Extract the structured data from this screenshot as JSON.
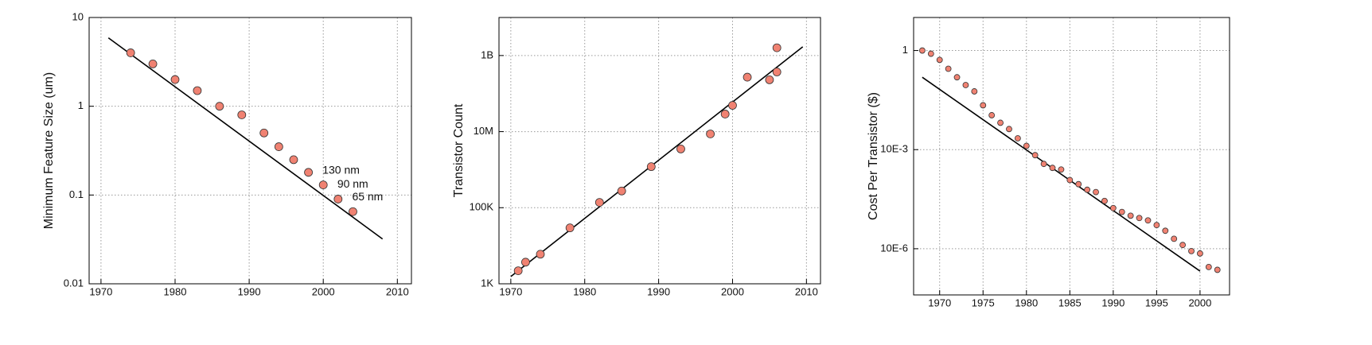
{
  "chart_data": [
    {
      "type": "scatter",
      "y_label": "Minimum Feature Size (um)",
      "yscale": "log",
      "grid": true,
      "color": "#f08272",
      "x": [
        1974,
        1977,
        1980,
        1983,
        1986,
        1989,
        1992,
        1994,
        1996,
        1998,
        2000,
        2002,
        2004
      ],
      "values": [
        4,
        3,
        2,
        1.5,
        1,
        0.8,
        0.5,
        0.35,
        0.25,
        0.18,
        0.13,
        0.09,
        0.065
      ],
      "fit": {
        "x": [
          1971,
          2008
        ],
        "values": [
          5.9,
          0.032
        ]
      },
      "annotations": [
        {
          "text": "130 nm",
          "x": 2000,
          "y": 0.13
        },
        {
          "text": "90 nm",
          "x": 2002,
          "y": 0.09
        },
        {
          "text": "65 nm",
          "x": 2004,
          "y": 0.065
        }
      ],
      "xlim": [
        1968.4,
        2011.9
      ],
      "xticks": [
        1970,
        1980,
        1990,
        2000,
        2010
      ],
      "ylim": [
        0.01,
        10
      ],
      "yticks": [
        0.01,
        0.1,
        1,
        10
      ]
    },
    {
      "type": "scatter",
      "y_label": "Transistor Count",
      "yscale": "log",
      "grid": true,
      "color": "#f08272",
      "x": [
        1971,
        1972,
        1974,
        1978,
        1982,
        1985,
        1989,
        1993,
        1997,
        1999,
        2000,
        2002,
        2005,
        2006,
        2006
      ],
      "values": [
        2200,
        3700,
        6000,
        29500,
        138000,
        275000,
        1200000,
        3500000,
        8700000,
        29000000,
        49000000,
        270000000,
        230000000,
        1600000000,
        370000000
      ],
      "fit": {
        "x": [
          1970,
          2009.5
        ],
        "values": [
          1550,
          1700000000
        ]
      },
      "xlim": [
        1968.4,
        2011.9
      ],
      "xticks": [
        1970,
        1980,
        1990,
        2000,
        2010
      ],
      "ylim": [
        1000,
        10000000000
      ],
      "yticks": [
        {
          "value": 1000,
          "label": "1K"
        },
        {
          "value": 100000,
          "label": "100K"
        },
        {
          "value": 10000000,
          "label": "10M"
        },
        {
          "value": 1000000000,
          "label": "1B"
        }
      ]
    },
    {
      "type": "scatter",
      "y_label": "Cost Per Transistor ($)",
      "yscale": "log",
      "grid": true,
      "color": "#f08272",
      "x": [
        1968,
        1969,
        1970,
        1971,
        1972,
        1973,
        1974,
        1975,
        1976,
        1977,
        1978,
        1979,
        1980,
        1981,
        1982,
        1983,
        1984,
        1985,
        1986,
        1987,
        1988,
        1989,
        1990,
        1991,
        1992,
        1993,
        1994,
        1995,
        1996,
        1997,
        1998,
        1999,
        2000,
        2001,
        2002
      ],
      "values": [
        1,
        0.8,
        0.52,
        0.28,
        0.155,
        0.09,
        0.058,
        0.022,
        0.011,
        0.0065,
        0.0042,
        0.0022,
        0.0013,
        0.00068,
        0.00037,
        0.00028,
        0.00025,
        0.00012,
        9e-05,
        6.1e-05,
        5.2e-05,
        2.8e-05,
        1.7e-05,
        1.3e-05,
        1e-05,
        8.5e-06,
        7.2e-06,
        5.2e-06,
        3.5e-06,
        2e-06,
        1.3e-06,
        8.5e-07,
        7.2e-07,
        2.8e-07,
        2.3e-07
      ],
      "fit": {
        "x": [
          1968,
          2000
        ],
        "values": [
          0.155,
          2.1e-07
        ]
      },
      "xlim": [
        1967,
        2003.4
      ],
      "xticks": [
        1970,
        1975,
        1980,
        1985,
        1990,
        1995,
        2000
      ],
      "ylim": [
        4e-08,
        10
      ],
      "yticks": [
        1,
        {
          "value": 0.001,
          "label": "10E-3"
        },
        {
          "value": 1e-06,
          "label": "10E-6"
        }
      ]
    }
  ]
}
